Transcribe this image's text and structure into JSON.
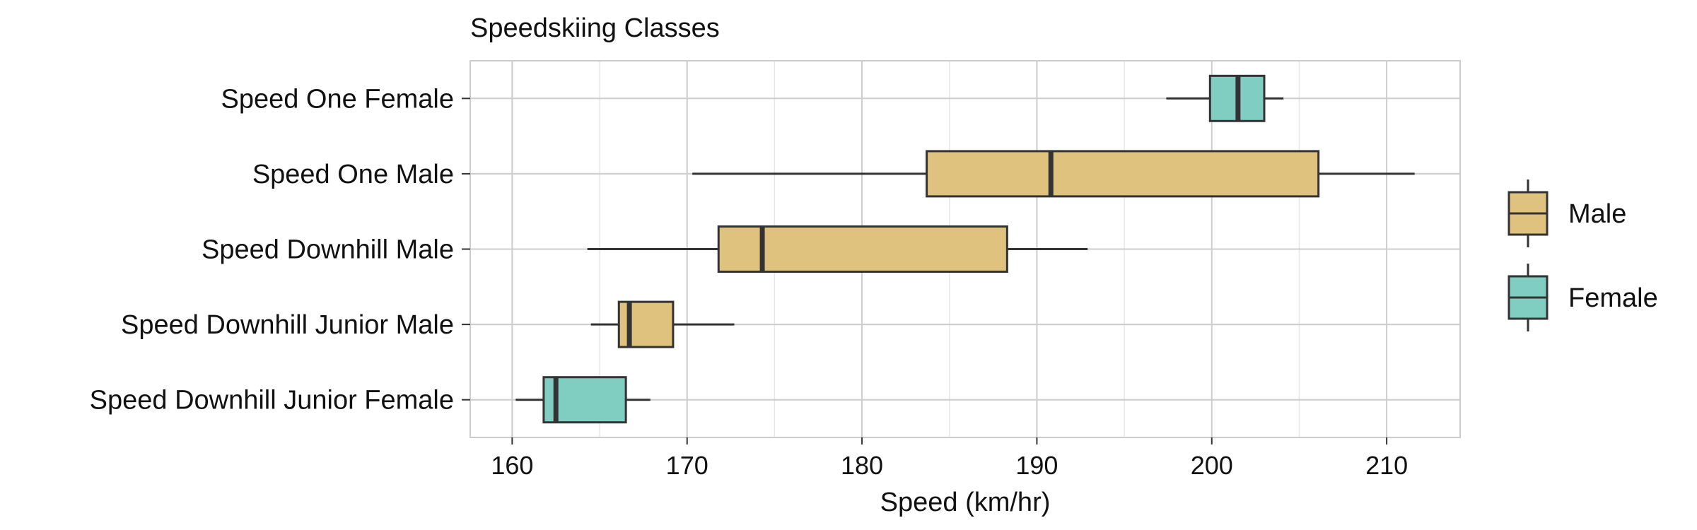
{
  "chart_data": {
    "type": "boxplot",
    "title": "Speedskiing Classes",
    "xlabel": "Speed (km/hr)",
    "ylabel": "",
    "xlim": [
      157.6,
      214.2
    ],
    "xticks": [
      160,
      170,
      180,
      190,
      200,
      210
    ],
    "grid": true,
    "orientation": "horizontal",
    "legend": {
      "placement": "right",
      "entries": [
        {
          "label": "Male",
          "color": "#dfc27d"
        },
        {
          "label": "Female",
          "color": "#80cdc1"
        }
      ]
    },
    "categories": [
      "Speed One Female",
      "Speed One Male",
      "Speed Downhill Male",
      "Speed Downhill Junior Male",
      "Speed Downhill Junior Female"
    ],
    "boxes": [
      {
        "category": "Speed One Female",
        "group": "Female",
        "whisker_low": 197.4,
        "q1": 199.9,
        "median": 201.5,
        "q3": 203.0,
        "whisker_high": 204.1
      },
      {
        "category": "Speed One Male",
        "group": "Male",
        "whisker_low": 170.3,
        "q1": 183.7,
        "median": 190.8,
        "q3": 206.1,
        "whisker_high": 211.6
      },
      {
        "category": "Speed Downhill Male",
        "group": "Male",
        "whisker_low": 164.3,
        "q1": 171.8,
        "median": 174.3,
        "q3": 188.3,
        "whisker_high": 192.9
      },
      {
        "category": "Speed Downhill Junior Male",
        "group": "Male",
        "whisker_low": 164.5,
        "q1": 166.1,
        "median": 166.7,
        "q3": 169.2,
        "whisker_high": 172.7
      },
      {
        "category": "Speed Downhill Junior Female",
        "group": "Female",
        "whisker_low": 160.2,
        "q1": 161.8,
        "median": 162.5,
        "q3": 166.5,
        "whisker_high": 167.9
      }
    ],
    "colors": {
      "male": "#dfc27d",
      "female": "#80cdc1",
      "outline": "#333333",
      "grid": "#cccccc",
      "panel_border": "#cccccc"
    }
  }
}
